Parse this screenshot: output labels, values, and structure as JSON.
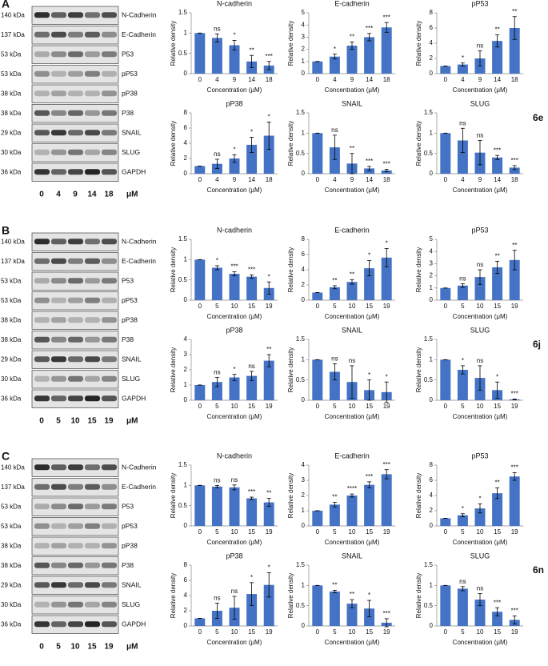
{
  "panels": [
    {
      "label": "A",
      "figure": "6e",
      "unit": "μM",
      "lanes": [
        0,
        4,
        9,
        14,
        18
      ],
      "rows": [
        {
          "kda": "140 kDa",
          "protein": "N-Cadherin"
        },
        {
          "kda": "137 kDa",
          "protein": "E-Cadherin"
        },
        {
          "kda": "53 kDa",
          "protein": "P53"
        },
        {
          "kda": "53 kDa",
          "protein": "pP53"
        },
        {
          "kda": "38 kDa",
          "protein": "pP38"
        },
        {
          "kda": "38 kDa",
          "protein": "P38"
        },
        {
          "kda": "29 kDa",
          "protein": "SNAIL"
        },
        {
          "kda": "30 kDa",
          "protein": "SLUG"
        },
        {
          "kda": "36 kDa",
          "protein": "GAPDH"
        }
      ]
    },
    {
      "label": "B",
      "figure": "6j",
      "unit": "μM",
      "lanes": [
        0,
        5,
        10,
        15,
        19
      ],
      "rows": [
        {
          "kda": "140 kDa",
          "protein": "N-Cadherin"
        },
        {
          "kda": "137 kDa",
          "protein": "E-Cadherin"
        },
        {
          "kda": "53 kDa",
          "protein": "P53"
        },
        {
          "kda": "53 kDa",
          "protein": "pP53"
        },
        {
          "kda": "38 kDa",
          "protein": "pP38"
        },
        {
          "kda": "38 kDa",
          "protein": "P38"
        },
        {
          "kda": "29 kDa",
          "protein": "SNAIL"
        },
        {
          "kda": "30 kDa",
          "protein": "SLUG"
        },
        {
          "kda": "36 kDa",
          "protein": "GAPDH"
        }
      ]
    },
    {
      "label": "C",
      "figure": "6n",
      "unit": "μM",
      "lanes": [
        0,
        5,
        10,
        15,
        19
      ],
      "rows": [
        {
          "kda": "140 kDa",
          "protein": "N-Cadherin"
        },
        {
          "kda": "137 kDa",
          "protein": "E-Cadherin"
        },
        {
          "kda": "53 kDa",
          "protein": "P53"
        },
        {
          "kda": "53 kDa",
          "protein": "pP53"
        },
        {
          "kda": "38 kDa",
          "protein": "pP38"
        },
        {
          "kda": "38 kDa",
          "protein": "P38"
        },
        {
          "kda": "29 kDa",
          "protein": "SNAIL"
        },
        {
          "kda": "30 kDa",
          "protein": "SLUG"
        },
        {
          "kda": "36 kDa",
          "protein": "GAPDH"
        }
      ]
    }
  ],
  "chart_data": [
    {
      "type": "bar",
      "title": "N-cadherin",
      "ylabel": "Relative density",
      "xlabel": "Concentration (μM)",
      "color": "#4472c4",
      "categories": [
        0,
        4,
        9,
        14,
        18
      ],
      "values": [
        1,
        0.88,
        0.7,
        0.3,
        0.2
      ],
      "errors": [
        0,
        0.1,
        0.12,
        0.15,
        0.1
      ],
      "annotations": [
        null,
        "ns",
        "*",
        "**",
        "***"
      ],
      "ylim": [
        0,
        1.5
      ],
      "yticks": [
        0,
        0.5,
        1,
        1.5
      ]
    },
    {
      "type": "bar",
      "title": "E-cadherin",
      "ylabel": "Relative density",
      "xlabel": "Concentration (μM)",
      "color": "#4472c4",
      "categories": [
        0,
        4,
        9,
        14,
        18
      ],
      "values": [
        1,
        1.4,
        2.3,
        3.0,
        3.8
      ],
      "errors": [
        0,
        0.2,
        0.3,
        0.3,
        0.4
      ],
      "annotations": [
        null,
        "*",
        "**",
        "***",
        "***"
      ],
      "ylim": [
        0,
        5
      ],
      "yticks": [
        0,
        1,
        2,
        3,
        4,
        5
      ]
    },
    {
      "type": "bar",
      "title": "pP53",
      "ylabel": "Relative density",
      "xlabel": "Concentration (μM)",
      "color": "#4472c4",
      "categories": [
        0,
        4,
        9,
        14,
        18
      ],
      "values": [
        1,
        1.2,
        2,
        4.3,
        6
      ],
      "errors": [
        0,
        0.2,
        1,
        0.8,
        1.5
      ],
      "annotations": [
        null,
        "*",
        "ns",
        "**",
        "**"
      ],
      "ylim": [
        0,
        8
      ],
      "yticks": [
        0,
        2,
        4,
        6,
        8
      ]
    },
    {
      "type": "bar",
      "title": "pP38",
      "ylabel": "Relative density",
      "xlabel": "Concentration (μM)",
      "color": "#4472c4",
      "categories": [
        0,
        4,
        9,
        14,
        18
      ],
      "values": [
        1,
        1.3,
        2,
        3.8,
        5
      ],
      "errors": [
        0,
        0.6,
        0.5,
        1,
        1.8
      ],
      "annotations": [
        null,
        "ns",
        "*",
        "*",
        "*"
      ],
      "ylim": [
        0,
        8
      ],
      "yticks": [
        0,
        2,
        4,
        6,
        8
      ]
    },
    {
      "type": "bar",
      "title": "SNAIL",
      "ylabel": "Relative density",
      "xlabel": "Concentration (μM)",
      "color": "#4472c4",
      "categories": [
        0,
        4,
        9,
        14,
        18
      ],
      "values": [
        1,
        0.65,
        0.25,
        0.13,
        0.08
      ],
      "errors": [
        0,
        0.3,
        0.25,
        0.05,
        0.03
      ],
      "annotations": [
        null,
        "ns",
        "**",
        "***",
        "***"
      ],
      "ylim": [
        0,
        1.5
      ],
      "yticks": [
        0,
        0.5,
        1,
        1.5
      ]
    },
    {
      "type": "bar",
      "title": "SLUG",
      "ylabel": "Relative density",
      "xlabel": "Concentration (μM)",
      "color": "#4472c4",
      "categories": [
        0,
        4,
        9,
        14,
        18
      ],
      "values": [
        1,
        0.82,
        0.52,
        0.4,
        0.15
      ],
      "errors": [
        0,
        0.3,
        0.3,
        0.05,
        0.05
      ],
      "annotations": [
        null,
        "ns",
        "ns",
        "***",
        "***"
      ],
      "ylim": [
        0,
        1.5
      ],
      "yticks": [
        0,
        0.5,
        1,
        1.5
      ]
    },
    {
      "type": "bar",
      "title": "N-cadherin",
      "ylabel": "Relative density",
      "xlabel": "Concentration (μM)",
      "color": "#4472c4",
      "categories": [
        0,
        5,
        10,
        15,
        19
      ],
      "values": [
        1,
        0.8,
        0.65,
        0.58,
        0.3
      ],
      "errors": [
        0,
        0.05,
        0.05,
        0.04,
        0.15
      ],
      "annotations": [
        null,
        "*",
        "***",
        "***",
        "*"
      ],
      "ylim": [
        0,
        1.5
      ],
      "yticks": [
        0,
        0.5,
        1,
        1.5
      ]
    },
    {
      "type": "bar",
      "title": "E-cadherin",
      "ylabel": "Relative density",
      "xlabel": "Concentration (μM)",
      "color": "#4472c4",
      "categories": [
        0,
        5,
        10,
        15,
        19
      ],
      "values": [
        1,
        1.7,
        2.4,
        4.2,
        5.6
      ],
      "errors": [
        0,
        0.2,
        0.3,
        1,
        1.2
      ],
      "annotations": [
        null,
        "**",
        "**",
        "*",
        "*"
      ],
      "ylim": [
        0,
        8
      ],
      "yticks": [
        0,
        2,
        4,
        6,
        8
      ]
    },
    {
      "type": "bar",
      "title": "pP53",
      "ylabel": "Relative density",
      "xlabel": "Concentration (μM)",
      "color": "#4472c4",
      "categories": [
        0,
        5,
        10,
        15,
        19
      ],
      "values": [
        1,
        1.2,
        1.9,
        2.7,
        3.3
      ],
      "errors": [
        0,
        0.15,
        0.6,
        0.5,
        0.8
      ],
      "annotations": [
        null,
        "ns",
        "ns",
        "**",
        "**"
      ],
      "ylim": [
        0,
        5
      ],
      "yticks": [
        0,
        1,
        2,
        3,
        4,
        5
      ]
    },
    {
      "type": "bar",
      "title": "pP38",
      "ylabel": "Relative density",
      "xlabel": "Concentration (μM)",
      "color": "#4472c4",
      "categories": [
        0,
        5,
        10,
        15,
        19
      ],
      "values": [
        1,
        1.2,
        1.5,
        1.6,
        2.6
      ],
      "errors": [
        0,
        0.3,
        0.2,
        0.3,
        0.4
      ],
      "annotations": [
        null,
        "ns",
        "*",
        "ns",
        "**"
      ],
      "ylim": [
        0,
        4
      ],
      "yticks": [
        0,
        1,
        2,
        3,
        4
      ]
    },
    {
      "type": "bar",
      "title": "SNAIL",
      "ylabel": "Relative density",
      "xlabel": "Concentration (μM)",
      "color": "#4472c4",
      "categories": [
        0,
        5,
        10,
        15,
        19
      ],
      "values": [
        1,
        0.7,
        0.45,
        0.25,
        0.2
      ],
      "errors": [
        0,
        0.2,
        0.4,
        0.25,
        0.25
      ],
      "annotations": [
        null,
        "ns",
        "ns",
        "*",
        "*"
      ],
      "ylim": [
        0,
        1.5
      ],
      "yticks": [
        0,
        0.5,
        1,
        1.5
      ]
    },
    {
      "type": "bar",
      "title": "SLUG",
      "ylabel": "Relative density",
      "xlabel": "Concentration (μM)",
      "color": "#4472c4",
      "categories": [
        0,
        5,
        10,
        15,
        19
      ],
      "values": [
        1,
        0.75,
        0.55,
        0.25,
        0.02
      ],
      "errors": [
        0,
        0.1,
        0.3,
        0.2,
        0.01
      ],
      "annotations": [
        null,
        "*",
        "ns",
        "*",
        "***"
      ],
      "ylim": [
        0,
        1.5
      ],
      "yticks": [
        0,
        0.5,
        1,
        1.5
      ]
    },
    {
      "type": "bar",
      "title": "N-cadherin",
      "ylabel": "Relative density",
      "xlabel": "Concentration (μM)",
      "color": "#4472c4",
      "categories": [
        0,
        5,
        10,
        15,
        19
      ],
      "values": [
        1,
        0.97,
        0.95,
        0.68,
        0.58
      ],
      "errors": [
        0,
        0.03,
        0.06,
        0.03,
        0.1
      ],
      "annotations": [
        null,
        "ns",
        "ns",
        "***",
        "**"
      ],
      "ylim": [
        0,
        1.5
      ],
      "yticks": [
        0,
        0.5,
        1,
        1.5
      ]
    },
    {
      "type": "bar",
      "title": "E-cadherin",
      "ylabel": "Relative density",
      "xlabel": "Concentration (μM)",
      "color": "#4472c4",
      "categories": [
        0,
        5,
        10,
        15,
        19
      ],
      "values": [
        1,
        1.4,
        2.0,
        2.7,
        3.4
      ],
      "errors": [
        0,
        0.15,
        0.1,
        0.2,
        0.3
      ],
      "annotations": [
        null,
        "**",
        "****",
        "***",
        "***"
      ],
      "ylim": [
        0,
        4
      ],
      "yticks": [
        0,
        1,
        2,
        3,
        4
      ]
    },
    {
      "type": "bar",
      "title": "pP53",
      "ylabel": "Relative density",
      "xlabel": "Concentration (μM)",
      "color": "#4472c4",
      "categories": [
        0,
        5,
        10,
        15,
        19
      ],
      "values": [
        1,
        1.4,
        2.3,
        4.3,
        6.5
      ],
      "errors": [
        0,
        0.2,
        0.6,
        0.7,
        0.5
      ],
      "annotations": [
        null,
        "*",
        "*",
        "**",
        "***"
      ],
      "ylim": [
        0,
        8
      ],
      "yticks": [
        0,
        2,
        4,
        6,
        8
      ]
    },
    {
      "type": "bar",
      "title": "pP38",
      "ylabel": "Relative density",
      "xlabel": "Concentration (μM)",
      "color": "#4472c4",
      "categories": [
        0,
        5,
        10,
        15,
        19
      ],
      "values": [
        1,
        2,
        2.4,
        4.2,
        5.4
      ],
      "errors": [
        0,
        1,
        1.5,
        1.5,
        1.6
      ],
      "annotations": [
        null,
        "ns",
        "ns",
        "*",
        "*"
      ],
      "ylim": [
        0,
        8
      ],
      "yticks": [
        0,
        2,
        4,
        6,
        8
      ]
    },
    {
      "type": "bar",
      "title": "SNAIL",
      "ylabel": "Relative density",
      "xlabel": "Concentration (μM)",
      "color": "#4472c4",
      "categories": [
        0,
        5,
        10,
        15,
        19
      ],
      "values": [
        1,
        0.85,
        0.55,
        0.43,
        0.08
      ],
      "errors": [
        0,
        0.03,
        0.1,
        0.2,
        0.1
      ],
      "annotations": [
        null,
        "**",
        "**",
        "*",
        "***"
      ],
      "ylim": [
        0,
        1.5
      ],
      "yticks": [
        0,
        0.5,
        1,
        1.5
      ]
    },
    {
      "type": "bar",
      "title": "SLUG",
      "ylabel": "Relative density",
      "xlabel": "Concentration (μM)",
      "color": "#4472c4",
      "categories": [
        0,
        5,
        10,
        15,
        19
      ],
      "values": [
        1,
        0.92,
        0.65,
        0.35,
        0.15
      ],
      "errors": [
        0,
        0.05,
        0.15,
        0.1,
        0.1
      ],
      "annotations": [
        null,
        "ns",
        "ns",
        "***",
        "***"
      ],
      "ylim": [
        0,
        1.5
      ],
      "yticks": [
        0,
        0.5,
        1,
        1.5
      ]
    }
  ]
}
